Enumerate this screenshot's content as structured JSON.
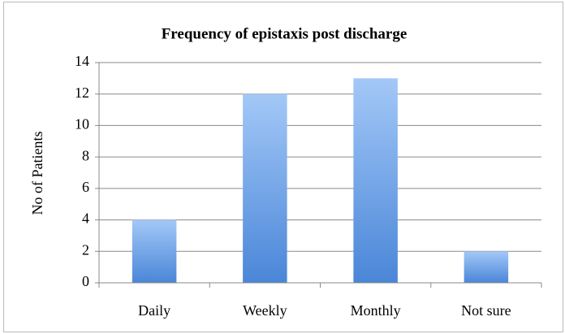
{
  "chart_data": {
    "type": "bar",
    "title": "Frequency of epistaxis post discharge",
    "y_label": "No of Patients",
    "categories": [
      "Daily",
      "Weekly",
      "Monthly",
      "Not sure"
    ],
    "values": [
      4,
      12,
      13,
      2
    ],
    "color": "#4a86d8",
    "ylim": [
      0,
      14
    ],
    "yticks": [
      0,
      2,
      4,
      6,
      8,
      10,
      12,
      14
    ],
    "grid": true
  }
}
